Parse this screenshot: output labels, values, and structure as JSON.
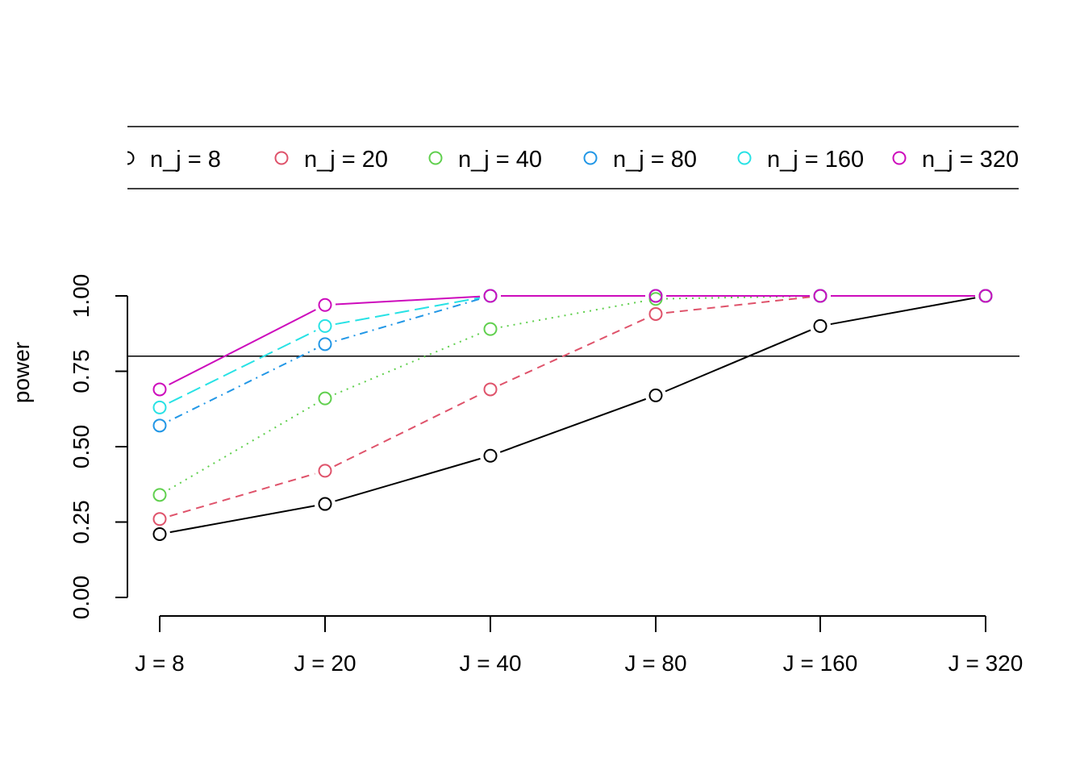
{
  "chart_data": {
    "type": "line",
    "title": "",
    "xlabel": "",
    "ylabel": "power",
    "categories": [
      "J = 8",
      "J = 20",
      "J = 40",
      "J = 80",
      "J = 160",
      "J = 320"
    ],
    "ylim": [
      0,
      1
    ],
    "yticks": [
      "0.00",
      "0.25",
      "0.50",
      "0.75",
      "1.00"
    ],
    "reference_line": 0.8,
    "grid": false,
    "legend_placement": "top",
    "series": [
      {
        "name": "n_j = 8",
        "color": "#000000",
        "dash": "solid",
        "values": [
          0.21,
          0.31,
          0.47,
          0.67,
          0.9,
          1.0
        ]
      },
      {
        "name": "n_j = 20",
        "color": "#DF536B",
        "dash": "dashed",
        "values": [
          0.26,
          0.42,
          0.69,
          0.94,
          1.0,
          1.0
        ]
      },
      {
        "name": "n_j = 40",
        "color": "#61D04F",
        "dash": "dotted",
        "values": [
          0.34,
          0.66,
          0.89,
          0.99,
          1.0,
          1.0
        ]
      },
      {
        "name": "n_j = 80",
        "color": "#2297E6",
        "dash": "dotdash",
        "values": [
          0.57,
          0.84,
          1.0,
          1.0,
          1.0,
          1.0
        ]
      },
      {
        "name": "n_j = 160",
        "color": "#28E2E5",
        "dash": "longdash",
        "values": [
          0.63,
          0.9,
          1.0,
          1.0,
          1.0,
          1.0
        ]
      },
      {
        "name": "n_j = 320",
        "color": "#CD0BBC",
        "dash": "solid",
        "values": [
          0.69,
          0.97,
          1.0,
          1.0,
          1.0,
          1.0
        ]
      }
    ]
  }
}
